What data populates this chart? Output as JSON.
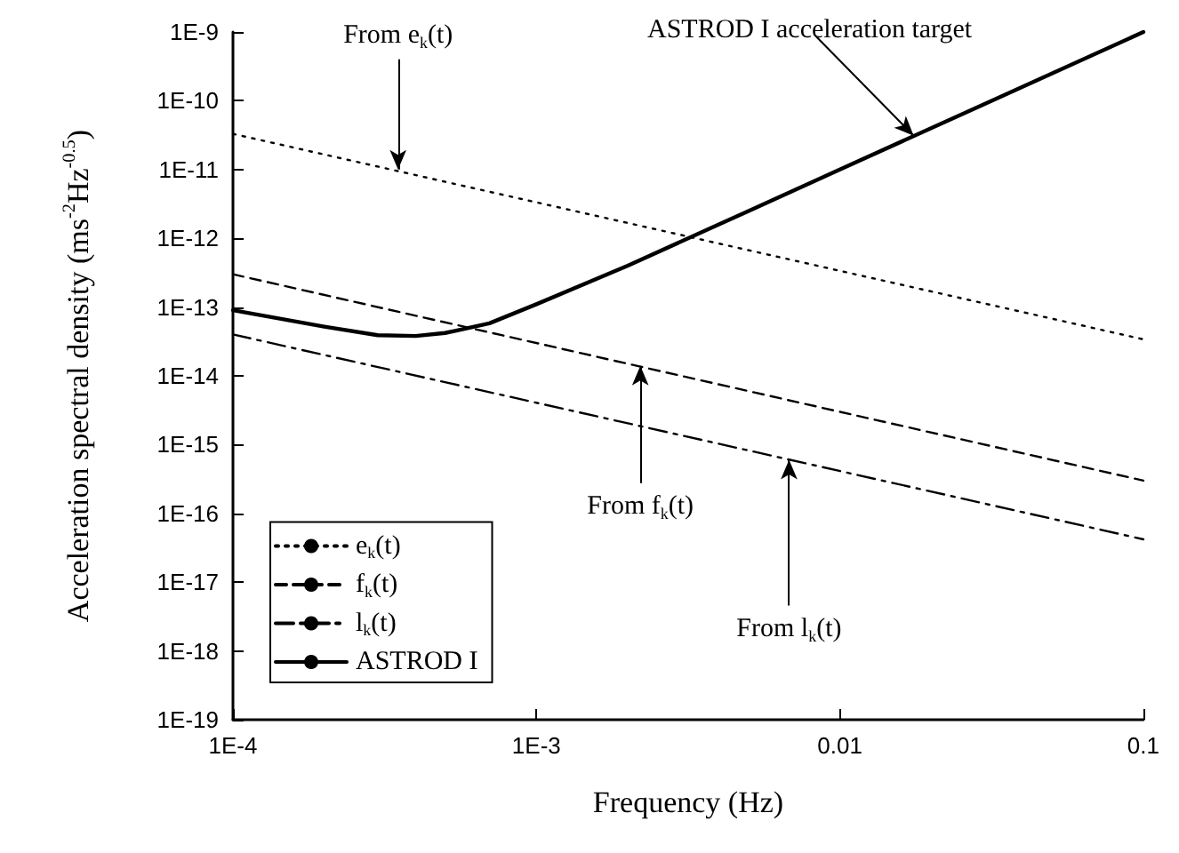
{
  "chart_data": {
    "type": "line",
    "xlabel": "Frequency (Hz)",
    "ylabel": "Acceleration spectral density (ms$^{-2}$Hz$^{-0.5}$)",
    "log": "xy",
    "xlim": [
      0.0001,
      0.1
    ],
    "xticks": [
      {
        "value": 0.0001,
        "label": "1E-4"
      },
      {
        "value": 0.001,
        "label": "1E-3"
      },
      0.01,
      0.1
    ],
    "ylim": [
      1e-19,
      1e-09
    ],
    "yticks": [
      {
        "value": 1e-19,
        "label": "1E-19"
      },
      {
        "value": 1e-18,
        "label": "1E-18"
      },
      {
        "value": 1e-17,
        "label": "1E-17"
      },
      {
        "value": 1e-16,
        "label": "1E-16"
      },
      {
        "value": 1e-15,
        "label": "1E-15"
      },
      {
        "value": 1e-14,
        "label": "1E-14"
      },
      {
        "value": 1e-13,
        "label": "1E-13"
      },
      {
        "value": 1e-12,
        "label": "1E-12"
      },
      {
        "value": 1e-11,
        "label": "1E-11"
      },
      {
        "value": 1e-10,
        "label": "1E-10"
      },
      {
        "value": 1e-09,
        "label": "1E-9"
      }
    ],
    "grid": false,
    "legend": "bottom left",
    "marker": "none",
    "series": [
      {
        "name": "e$_{k}$(t)",
        "color": "#000000",
        "line_style": "dotted",
        "x": [
          0.0001,
          0.1
        ],
        "values": [
          3.3e-11,
          3.4e-14
        ]
      },
      {
        "name": "f$_{k}$(t)",
        "color": "#000000",
        "line_style": "dashed",
        "x": [
          0.0001,
          0.1
        ],
        "values": [
          3e-13,
          3e-16
        ]
      },
      {
        "name": "l$_{k}$(t)",
        "color": "#000000",
        "line_style": "dashdot",
        "x": [
          0.0001,
          0.1
        ],
        "values": [
          4e-14,
          4.2e-17
        ]
      },
      {
        "name": "ASTROD I",
        "color": "#000000",
        "line_style": "solid",
        "x": [
          0.0001,
          0.0002,
          0.0003,
          0.0004,
          0.0005,
          0.0007,
          0.001,
          0.002,
          0.005,
          0.01,
          0.03,
          0.1
        ],
        "values": [
          9e-14,
          5.2e-14,
          3.9e-14,
          3.8e-14,
          4.2e-14,
          5.8e-14,
          1.1e-13,
          4e-13,
          2.5e-12,
          1e-11,
          9e-11,
          1e-09
        ]
      }
    ],
    "annotations": [
      {
        "text": "From e$_{k}$(t)",
        "x": 0.00035,
        "y": 1e-11
      },
      {
        "text": "From f$_{k}$(t)",
        "x": 0.0022,
        "y": 1.4e-14
      },
      {
        "text": "From l$_{k}$(t)",
        "x": 0.0068,
        "y": 6e-16
      },
      {
        "text": "ASTROD I acceleration target",
        "x": 0.0175,
        "y": 3.1e-11
      }
    ]
  }
}
